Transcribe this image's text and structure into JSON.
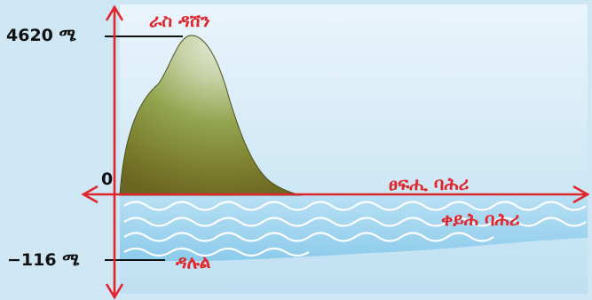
{
  "diagram": {
    "peak_elevation_label": "4620 ሜ",
    "zero_label": "0",
    "depression_elevation_label": "−116 ሜ",
    "peak_name": "ራስ ዳሸን",
    "sea_level_label": "ፀፍሒ ባሕሪ",
    "red_sea_label": "ቀይሕ ባሕሪ",
    "depression_name": "ዳሉል",
    "colors": {
      "background": "#cfe6f4",
      "axis": "#e0252b",
      "sea": "#9fd3ee",
      "wave": "#ffffff",
      "label_red": "#e0252b"
    }
  }
}
